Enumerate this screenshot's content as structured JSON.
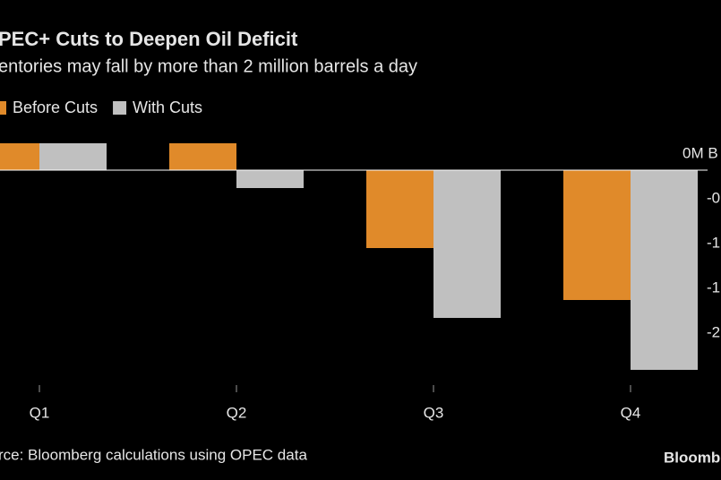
{
  "chart_data": {
    "type": "bar",
    "title": "PEC+ Cuts to Deepen Oil Deficit",
    "subtitle": "entories may fall by more than 2 million barrels a day",
    "categories": [
      "Q1",
      "Q2",
      "Q3",
      "Q4"
    ],
    "series": [
      {
        "name": "Before Cuts",
        "color": "#e08a2a",
        "values": [
          0.3,
          0.3,
          -0.87,
          -1.45
        ]
      },
      {
        "name": "With Cuts",
        "color": "#c0c0c0",
        "values": [
          0.3,
          -0.2,
          -1.65,
          -2.23
        ]
      }
    ],
    "ylim": [
      -2.35,
      0.4
    ],
    "yticks": [
      {
        "value": 0,
        "label": "0M B"
      },
      {
        "value": -0.5,
        "label": "-0"
      },
      -1,
      {
        "value": -1.5,
        "label": "-1"
      },
      -2
    ],
    "source": "rce: Bloomberg calculations using OPEC data",
    "brand": "Bloomberg"
  }
}
